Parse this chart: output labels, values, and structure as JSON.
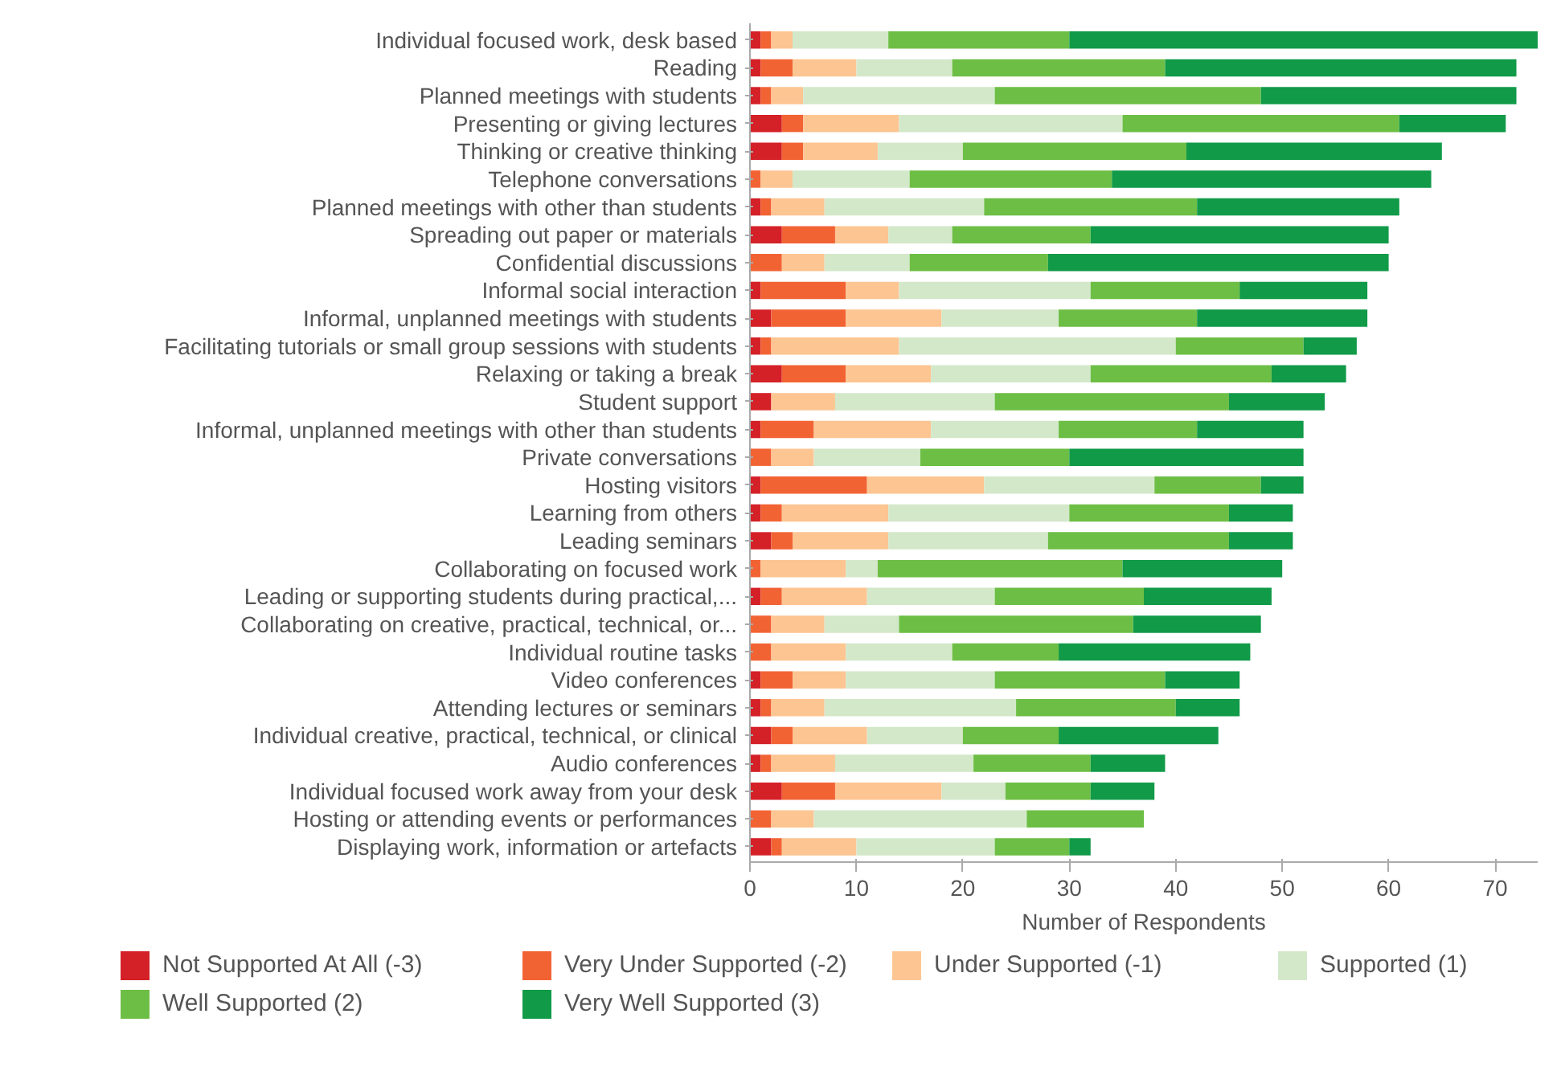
{
  "chart_data": {
    "type": "bar",
    "orientation": "horizontal",
    "stacked": true,
    "xlabel": "Number of Respondents",
    "xlim": [
      0,
      74
    ],
    "xticks": [
      0,
      10,
      20,
      30,
      40,
      50,
      60,
      70
    ],
    "grid": false,
    "legend": "bottom",
    "categories": [
      "Individual focused work, desk based",
      "Reading",
      "Planned meetings with students",
      "Presenting or giving lectures",
      "Thinking or creative thinking",
      "Telephone conversations",
      "Planned meetings with other than students",
      "Spreading out paper or materials",
      "Confidential discussions",
      "Informal social interaction",
      "Informal, unplanned meetings with students",
      "Facilitating tutorials or small group sessions with students",
      "Relaxing or taking a break",
      "Student support",
      "Informal, unplanned meetings with other than students",
      "Private conversations",
      "Hosting visitors",
      "Learning from others",
      "Leading seminars",
      "Collaborating on focused work",
      "Leading or supporting students during practical,...",
      "Collaborating on creative, practical, technical, or...",
      "Individual routine tasks",
      "Video conferences",
      "Attending lectures or seminars",
      "Individual creative, practical, technical, or clinical",
      "Audio conferences",
      "Individual focused work away from your desk",
      "Hosting or attending events or performances",
      "Displaying work, information or artefacts"
    ],
    "series": [
      {
        "name": "Not Supported At All (-3)",
        "color": "#d42027",
        "values": [
          1,
          1,
          1,
          3,
          3,
          0,
          1,
          3,
          0,
          1,
          2,
          1,
          3,
          2,
          1,
          0,
          1,
          1,
          2,
          0,
          1,
          0,
          0,
          1,
          1,
          2,
          1,
          3,
          0,
          2
        ]
      },
      {
        "name": "Very Under Supported (-2)",
        "color": "#f26334",
        "values": [
          1,
          3,
          1,
          2,
          2,
          1,
          1,
          5,
          3,
          8,
          7,
          1,
          6,
          0,
          5,
          2,
          10,
          2,
          2,
          1,
          2,
          2,
          2,
          3,
          1,
          2,
          1,
          5,
          2,
          1
        ]
      },
      {
        "name": "Under Supported (-1)",
        "color": "#fdc592",
        "values": [
          2,
          6,
          3,
          9,
          7,
          3,
          5,
          5,
          4,
          5,
          9,
          12,
          8,
          6,
          11,
          4,
          11,
          10,
          9,
          8,
          8,
          5,
          7,
          5,
          5,
          7,
          6,
          10,
          4,
          7
        ]
      },
      {
        "name": "Supported (1)",
        "color": "#d3e8c9",
        "values": [
          9,
          9,
          18,
          21,
          8,
          11,
          15,
          6,
          8,
          18,
          11,
          26,
          15,
          15,
          12,
          10,
          16,
          17,
          15,
          3,
          12,
          7,
          10,
          14,
          18,
          9,
          13,
          6,
          20,
          13
        ]
      },
      {
        "name": "Well Supported (2)",
        "color": "#6dbe45",
        "values": [
          17,
          20,
          25,
          26,
          21,
          19,
          20,
          13,
          13,
          14,
          13,
          12,
          17,
          22,
          13,
          14,
          10,
          15,
          17,
          23,
          14,
          22,
          10,
          16,
          15,
          9,
          11,
          8,
          11,
          7
        ]
      },
      {
        "name": "Very Well Supported (3)",
        "color": "#119a48",
        "values": [
          44,
          33,
          24,
          10,
          24,
          30,
          19,
          28,
          32,
          12,
          16,
          5,
          7,
          9,
          10,
          22,
          4,
          6,
          6,
          15,
          12,
          12,
          18,
          7,
          6,
          15,
          7,
          6,
          0,
          2
        ]
      }
    ]
  }
}
